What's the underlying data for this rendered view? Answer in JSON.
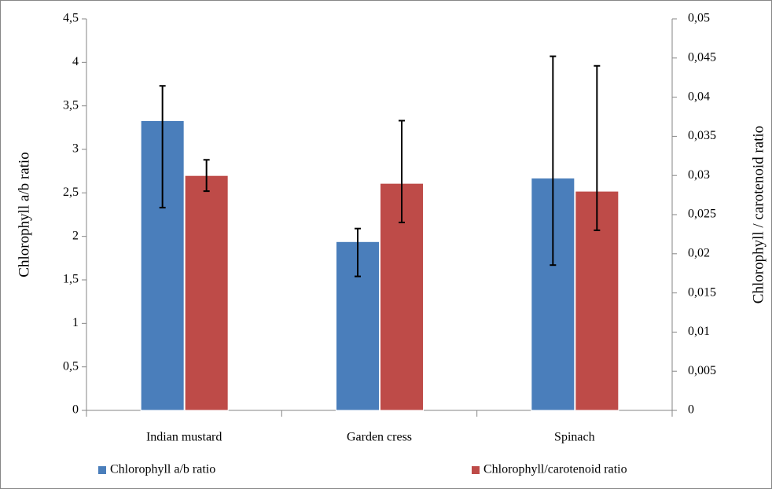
{
  "chart_data": {
    "type": "bar",
    "categories": [
      "Indian mustard",
      "Garden cress",
      "Spinach"
    ],
    "ylabel": "Chlorophyll a/b ratio",
    "y2label": "Chlorophyll / carotenoid ratio",
    "ylim": [
      0,
      4.5
    ],
    "yticks": [
      0,
      {
        "value": 0.5,
        "label": "0,5"
      },
      1,
      {
        "value": 1.5,
        "label": "1,5"
      },
      2,
      {
        "value": 2.5,
        "label": "2,5"
      },
      3,
      {
        "value": 3.5,
        "label": "3,5"
      },
      4,
      {
        "value": 4.5,
        "label": "4,5"
      }
    ],
    "y2lim": [
      0,
      0.05
    ],
    "y2ticks": [
      0,
      {
        "value": 0.005,
        "label": "0,005"
      },
      {
        "value": 0.01,
        "label": "0,01"
      },
      {
        "value": 0.015,
        "label": "0,015"
      },
      {
        "value": 0.02,
        "label": "0,02"
      },
      {
        "value": 0.025,
        "label": "0,025"
      },
      {
        "value": 0.03,
        "label": "0,03"
      },
      {
        "value": 0.035,
        "label": "0,035"
      },
      {
        "value": 0.04,
        "label": "0,04"
      },
      {
        "value": 0.045,
        "label": "0,045"
      },
      {
        "value": 0.05,
        "label": "0,05"
      }
    ],
    "legend": "bottom",
    "series": [
      {
        "name": "Chlorophyll a/b ratio",
        "color": "#4a7ebb",
        "values": [
          3.33,
          1.94,
          2.67
        ],
        "error_plus": [
          0.4,
          0.15,
          1.4
        ],
        "error_minus": [
          1.0,
          0.4,
          1.0
        ]
      },
      {
        "name": "Chlorophyll/carotenoid ratio",
        "color": "#be4b48",
        "axis": "y2",
        "values": [
          0.03,
          0.029,
          0.028
        ],
        "error_plus": [
          0.002,
          0.008,
          0.016
        ],
        "error_minus": [
          0.002,
          0.005,
          0.005
        ]
      }
    ]
  }
}
